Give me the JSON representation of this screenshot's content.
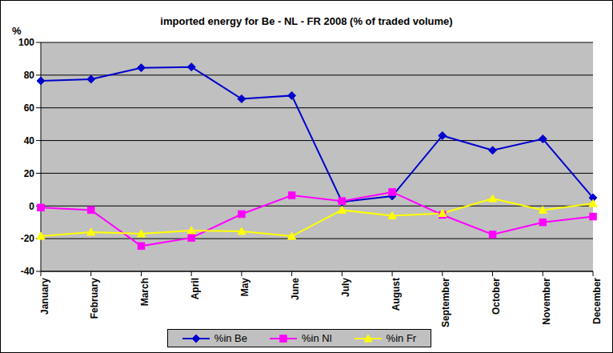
{
  "chart_data": {
    "type": "line",
    "title": "imported energy for Be - NL - FR 2008 (% of traded volume)",
    "y_label": "%",
    "categories": [
      "January",
      "February",
      "March",
      "April",
      "May",
      "June",
      "July",
      "August",
      "September",
      "October",
      "November",
      "December"
    ],
    "series": [
      {
        "name": "%in Be",
        "color": "#0000cc",
        "marker": "diamond",
        "values": [
          76.5,
          77.5,
          84.5,
          85,
          65.5,
          67.5,
          2.5,
          6,
          43,
          34,
          41,
          5
        ]
      },
      {
        "name": "%in Nl",
        "color": "#ff00ff",
        "marker": "square",
        "values": [
          -1,
          -2.5,
          -24.5,
          -19.5,
          -5,
          6.5,
          3,
          8.5,
          -5.5,
          -17.5,
          -10,
          -6.5
        ]
      },
      {
        "name": "%in Fr",
        "color": "#ffff00",
        "marker": "triangle",
        "values": [
          -18.5,
          -16,
          -17,
          -15,
          -15.5,
          -18.5,
          -2.5,
          -6,
          -4.5,
          4.5,
          -2.5,
          1.5
        ]
      }
    ],
    "ylim": [
      -40,
      100
    ],
    "yticks": [
      -40,
      -20,
      0,
      20,
      40,
      60,
      80,
      100
    ],
    "grid": true,
    "legend": "bottom"
  }
}
